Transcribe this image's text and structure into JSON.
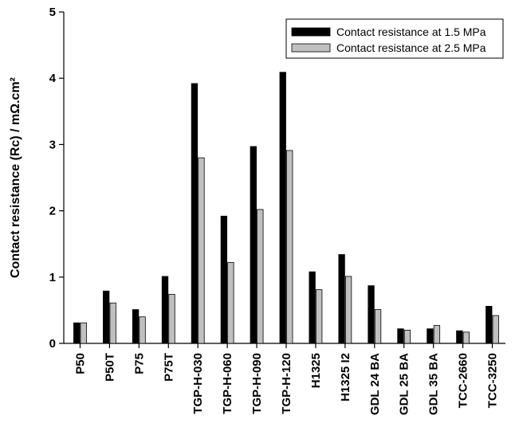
{
  "chart_data": {
    "type": "bar",
    "title": "",
    "xlabel": "",
    "ylabel": "Contact resistance (Rc) / mΩ.cm²",
    "ylim": [
      0,
      5
    ],
    "yticks": [
      0,
      1,
      2,
      3,
      4,
      5
    ],
    "grid": false,
    "legend_position": "top-right",
    "categories": [
      "P50",
      "P50T",
      "P75",
      "P75T",
      "TGP-H-030",
      "TGP-H-060",
      "TGP-H-090",
      "TGP-H-120",
      "H1325",
      "H1325 I2",
      "GDL 24 BA",
      "GDL 25 BA",
      "GDL 35 BA",
      "TCC-2660",
      "TCC-3250"
    ],
    "series": [
      {
        "name": "Contact resistance at 1.5 MPa",
        "color": "#000000",
        "values": [
          0.31,
          0.79,
          0.51,
          1.01,
          3.92,
          1.92,
          2.97,
          4.09,
          1.08,
          1.34,
          0.87,
          0.22,
          0.22,
          0.19,
          0.56
        ]
      },
      {
        "name": "Contact resistance at 2.5 MPa",
        "color": "#c0c0c0",
        "values": [
          0.31,
          0.61,
          0.4,
          0.74,
          2.8,
          1.22,
          2.02,
          2.91,
          0.81,
          1.01,
          0.51,
          0.2,
          0.27,
          0.17,
          0.42
        ]
      }
    ]
  }
}
